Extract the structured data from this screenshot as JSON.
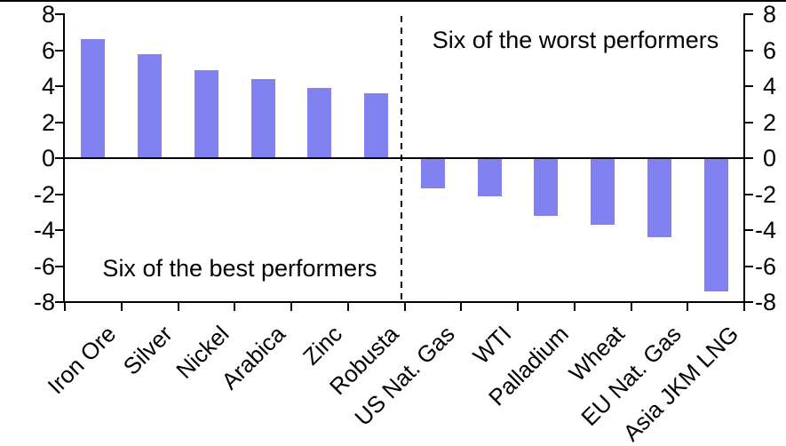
{
  "chart_data": {
    "type": "bar",
    "categories": [
      "Iron Ore",
      "Silver",
      "Nickel",
      "Arabica",
      "Zinc",
      "Robusta",
      "US Nat. Gas",
      "WTI",
      "Palladium",
      "Wheat",
      "EU Nat. Gas",
      "Asia JKM LNG"
    ],
    "values": [
      6.6,
      5.8,
      4.9,
      4.4,
      3.9,
      3.6,
      -1.7,
      -2.1,
      -3.2,
      -3.7,
      -4.4,
      -7.4
    ],
    "title": "",
    "xlabel": "",
    "ylabel": "",
    "ylim": [
      -8,
      8
    ],
    "yticks": [
      8,
      6,
      4,
      2,
      0,
      -2,
      -4,
      -6,
      -8
    ],
    "dual_y_axis": true,
    "grid": false,
    "zero_line": true,
    "divider_after_index": 6,
    "divider_style": "dashed",
    "annotations": [
      {
        "text": "Six of the worst performers",
        "region": "top-right"
      },
      {
        "text": "Six of the best performers",
        "region": "bottom-left"
      }
    ],
    "colors": {
      "bar": "#8281f2",
      "axis": "#000000",
      "background": "#ffffff"
    }
  }
}
